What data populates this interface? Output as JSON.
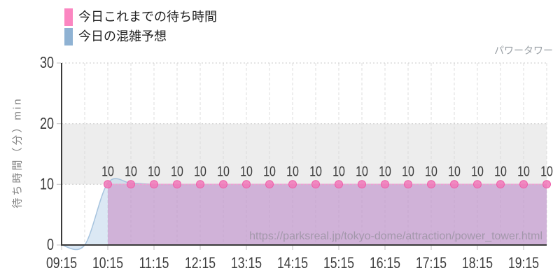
{
  "attraction_label": "パワータワー",
  "watermark": "https://parksreal.jp/tokyo-dome/attraction/power_tower.html",
  "legend": {
    "items": [
      {
        "label": "今日これまでの待ち時間",
        "color": "#fb86c1"
      },
      {
        "label": "今日の混雑予想",
        "color": "#8fb2d3"
      }
    ]
  },
  "chart_data": {
    "type": "area",
    "title": "パワータワー",
    "xlabel": "",
    "ylabel": "待ち時間（分）min",
    "ylim": [
      0,
      30
    ],
    "y_ticks": [
      0,
      10,
      20,
      30
    ],
    "x_start": "09:15",
    "x_end": "19:45",
    "x_tick_labels": [
      "09:15",
      "10:15",
      "11:15",
      "12:15",
      "13:15",
      "14:15",
      "15:15",
      "16:15",
      "17:15",
      "18:15",
      "19:15"
    ],
    "x_grid_interval_min": 30,
    "grid": true,
    "legend_position": "top-left",
    "highlight_band": {
      "from": 10,
      "to": 20,
      "color": "#ededed"
    },
    "series": [
      {
        "name": "今日これまでの待ち時間",
        "type": "area",
        "smooth": false,
        "show_points": true,
        "show_point_labels": true,
        "line_color": "#ee9ed6",
        "fill_color": "rgba(197,128,190,0.52)",
        "point_fill": "#f178b8",
        "point_stroke": "#ee5fa9",
        "points": [
          [
            "10:15",
            10
          ],
          [
            "10:45",
            10
          ],
          [
            "11:15",
            10
          ],
          [
            "11:45",
            10
          ],
          [
            "12:15",
            10
          ],
          [
            "12:45",
            10
          ],
          [
            "13:15",
            10
          ],
          [
            "13:45",
            10
          ],
          [
            "14:15",
            10
          ],
          [
            "14:45",
            10
          ],
          [
            "15:15",
            10
          ],
          [
            "15:45",
            10
          ],
          [
            "16:15",
            10
          ],
          [
            "16:45",
            10
          ],
          [
            "17:15",
            10
          ],
          [
            "17:45",
            10
          ],
          [
            "18:15",
            10
          ],
          [
            "18:45",
            10
          ],
          [
            "19:15",
            10
          ],
          [
            "19:45",
            10
          ]
        ]
      },
      {
        "name": "今日の混雑予想",
        "type": "area",
        "smooth": true,
        "show_points": false,
        "show_point_labels": false,
        "line_color": "#a6c3de",
        "fill_color": "rgba(176,205,230,0.45)",
        "points": [
          [
            "09:15",
            0
          ],
          [
            "09:45",
            0
          ],
          [
            "10:15",
            10.2
          ],
          [
            "10:45",
            10.2
          ],
          [
            "11:15",
            10
          ],
          [
            "12:15",
            10
          ],
          [
            "13:15",
            10
          ],
          [
            "14:15",
            10
          ],
          [
            "15:15",
            10
          ],
          [
            "16:15",
            10
          ],
          [
            "17:15",
            10
          ],
          [
            "18:15",
            10
          ],
          [
            "19:15",
            10
          ],
          [
            "19:45",
            10
          ]
        ]
      }
    ]
  },
  "style": {
    "axis_color": "#3a3a3a",
    "tick_color": "#c0c0c0",
    "tick_label_color": "#3c3c3c",
    "point_label_color": "#3c3c3c",
    "v_grid_color": "#dcdcdc",
    "h_grid_color": "#c8c8c8",
    "watermark_color": "#9b93a3"
  }
}
